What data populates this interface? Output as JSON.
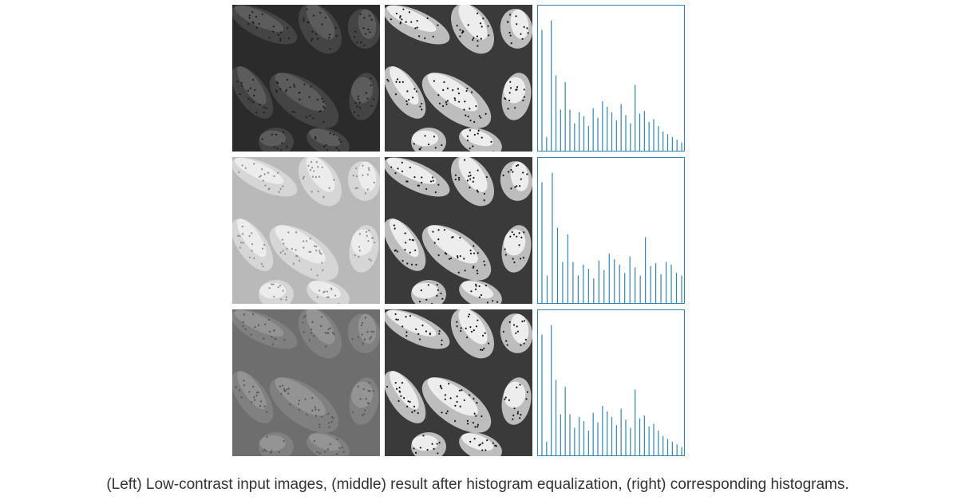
{
  "caption": "(Left) Low-contrast input images, (middle) result after histogram equalization, (right) corresponding histograms.",
  "colors": {
    "histogram_line": "#2f86b4",
    "frame": "#2f86b4"
  },
  "rows": [
    {
      "input_tone": "dark",
      "input_colors": {
        "bg": "#2b2b2b",
        "mid": "#444444",
        "hi": "#5c5c5c",
        "dot": "#1c1c1c"
      }
    },
    {
      "input_tone": "light",
      "input_colors": {
        "bg": "#b9b9b9",
        "mid": "#d6d6d6",
        "hi": "#ececec",
        "dot": "#8d8d8d"
      }
    },
    {
      "input_tone": "gray",
      "input_colors": {
        "bg": "#6e6e6e",
        "mid": "#808080",
        "hi": "#949494",
        "dot": "#555555"
      }
    }
  ],
  "equalized_colors": {
    "bg": "#3a3a3a",
    "mid": "#bdbdbd",
    "hi": "#ededed",
    "dot": "#161616"
  },
  "chart_data": [
    {
      "type": "bar",
      "title": "",
      "xlabel": "",
      "ylabel": "",
      "values": [
        0.88,
        0.1,
        0.95,
        0.55,
        0.3,
        0.5,
        0.3,
        0.2,
        0.28,
        0.25,
        0.18,
        0.31,
        0.24,
        0.36,
        0.32,
        0.28,
        0.22,
        0.34,
        0.26,
        0.2,
        0.48,
        0.27,
        0.29,
        0.21,
        0.23,
        0.18,
        0.14,
        0.12,
        0.1,
        0.08,
        0.06
      ]
    },
    {
      "type": "bar",
      "title": "",
      "xlabel": "",
      "ylabel": "",
      "values": [
        0.88,
        0.2,
        0.95,
        0.55,
        0.3,
        0.5,
        0.3,
        0.2,
        0.28,
        0.25,
        0.18,
        0.31,
        0.24,
        0.36,
        0.32,
        0.28,
        0.22,
        0.34,
        0.26,
        0.2,
        0.48,
        0.27,
        0.29,
        0.21,
        0.3,
        0.28,
        0.22,
        0.2
      ]
    },
    {
      "type": "bar",
      "title": "",
      "xlabel": "",
      "ylabel": "",
      "values": [
        0.88,
        0.1,
        0.95,
        0.55,
        0.3,
        0.5,
        0.3,
        0.2,
        0.28,
        0.25,
        0.18,
        0.31,
        0.24,
        0.36,
        0.32,
        0.28,
        0.22,
        0.34,
        0.26,
        0.2,
        0.48,
        0.27,
        0.29,
        0.21,
        0.23,
        0.18,
        0.14,
        0.12,
        0.1,
        0.08,
        0.06
      ]
    }
  ]
}
